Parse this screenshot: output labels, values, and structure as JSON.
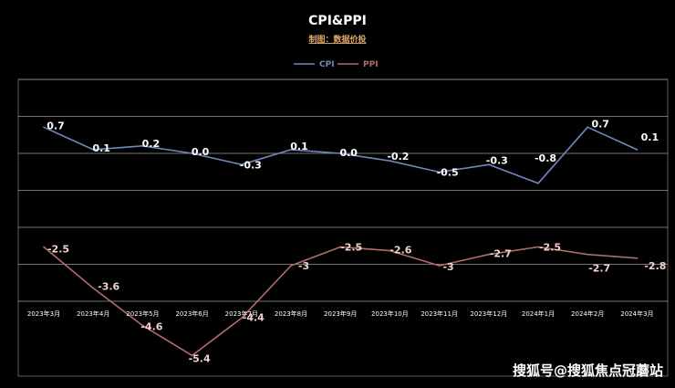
{
  "chart_data": {
    "type": "line",
    "title": "CPI&PPI",
    "subtitle": "制图：数据价投",
    "categories": [
      "2023年3月",
      "2023年4月",
      "2023年5月",
      "2023年6月",
      "2023年7月",
      "2023年8月",
      "2023年9月",
      "2023年10月",
      "2023年11月",
      "2023年12月",
      "2024年1月",
      "2024年2月",
      "2024年3月"
    ],
    "series": [
      {
        "name": "CPI",
        "values": [
          0.7,
          0.1,
          0.2,
          0.0,
          -0.3,
          0.1,
          0.0,
          -0.2,
          -0.5,
          -0.3,
          -0.8,
          0.7,
          0.1
        ],
        "labels": [
          "0.7",
          "0.1",
          "0.2",
          "0.0",
          "-0.3",
          "0.1",
          "0.0",
          "-0.2",
          "-0.5",
          "-0.3",
          "-0.8",
          "0.7",
          "0.1"
        ],
        "color": "#6f88bd"
      },
      {
        "name": "PPI",
        "values": [
          -2.5,
          -3.6,
          -4.6,
          -5.4,
          -4.4,
          -3,
          -2.5,
          -2.6,
          -3,
          -2.7,
          -2.5,
          -2.7,
          -2.8
        ],
        "labels": [
          "-2.5",
          "-3.6",
          "-4.6",
          "-5.4",
          "-4.4",
          "-3",
          "-2.5",
          "-2.6",
          "-3",
          "-2.7",
          "-2.5",
          "-2.7",
          "-2.8"
        ],
        "color": "#b06e6a"
      }
    ],
    "ylim": [
      -6,
      1.5
    ],
    "grid": true,
    "legend_position": "top-center"
  },
  "watermark": "搜狐号@搜狐焦点冠蘑站",
  "colors": {
    "background": "#000000",
    "grid": "#9a9a9a",
    "cpi_label": "#ffffff",
    "ppi_label": "#f2d2c8"
  }
}
